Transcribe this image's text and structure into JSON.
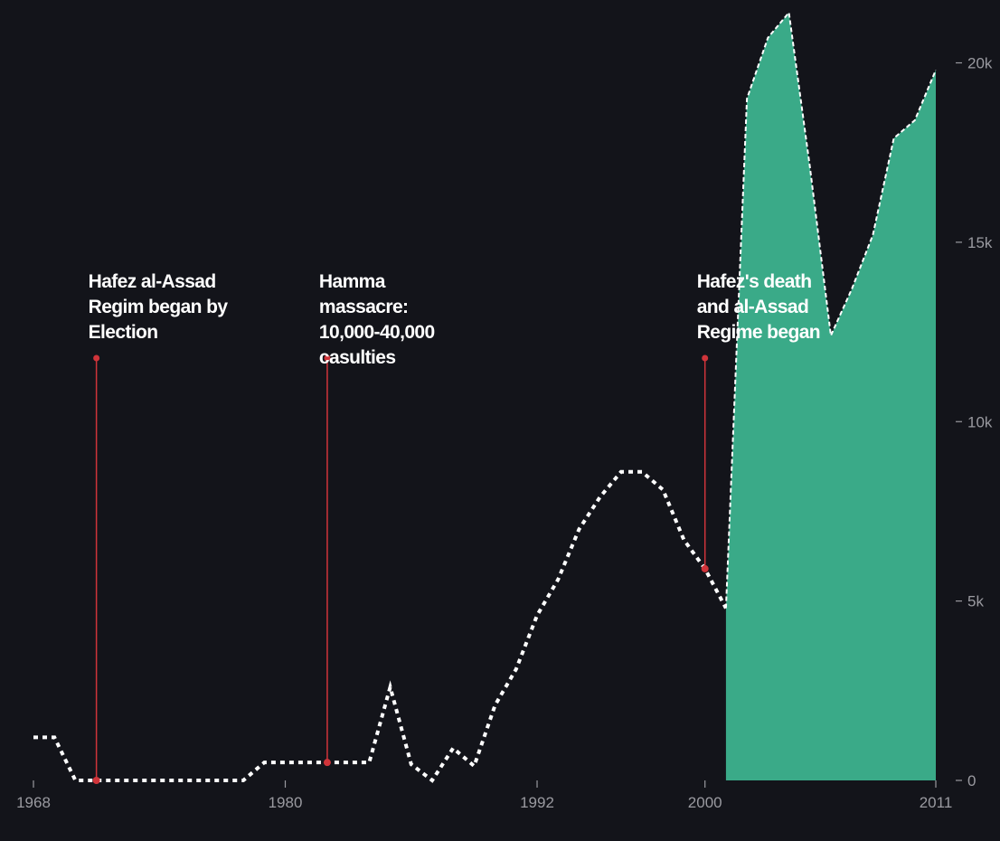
{
  "chart_data": {
    "type": "line",
    "xlim": [
      1968,
      2011
    ],
    "xticks": [
      1968,
      1980,
      1992,
      2000,
      2011
    ],
    "ylim": [
      0,
      21500
    ],
    "yticks": [
      0,
      {
        "value": 5000,
        "label": "5k"
      },
      {
        "value": 10000,
        "label": "10k"
      },
      {
        "value": 15000,
        "label": "15k"
      },
      {
        "value": 20000,
        "label": "20k"
      }
    ],
    "series": [
      {
        "color": "#ffffff",
        "style": "dotted",
        "x": [
          1968,
          1969,
          1970,
          1978,
          1979,
          1984,
          1985,
          1986,
          1987,
          1988,
          1989,
          1990,
          1991,
          1992,
          1993,
          1994,
          1995,
          1996,
          1997,
          1998,
          1999,
          2000,
          2001
        ],
        "values": [
          1200,
          1200,
          0,
          0,
          500,
          500,
          2600,
          450,
          0,
          900,
          400,
          2100,
          3100,
          4600,
          5600,
          7000,
          7900,
          8600,
          8600,
          8100,
          6700,
          5900,
          4800
        ]
      },
      {
        "color": "#3aaa88",
        "style": "area",
        "x": [
          2001,
          2002,
          2003,
          2004,
          2005,
          2006,
          2007,
          2008,
          2009,
          2010,
          2011
        ],
        "values": [
          4800,
          19000,
          20700,
          21400,
          17100,
          12400,
          13700,
          15200,
          17900,
          18400,
          19800
        ]
      }
    ],
    "annotations": [
      {
        "x": 1971,
        "y": 0,
        "lines": [
          "Hafez al-Assad",
          "Regim began by",
          "Election"
        ]
      },
      {
        "x": 1982,
        "y": 500,
        "lines": [
          "Hamma",
          "massacre:",
          "10,000-40,000",
          "casulties"
        ]
      },
      {
        "x": 2000,
        "y": 5900,
        "lines": [
          "Hafez's death",
          "and al-Assad",
          "Regime began"
        ]
      }
    ],
    "marker_color": "#d0343a"
  }
}
